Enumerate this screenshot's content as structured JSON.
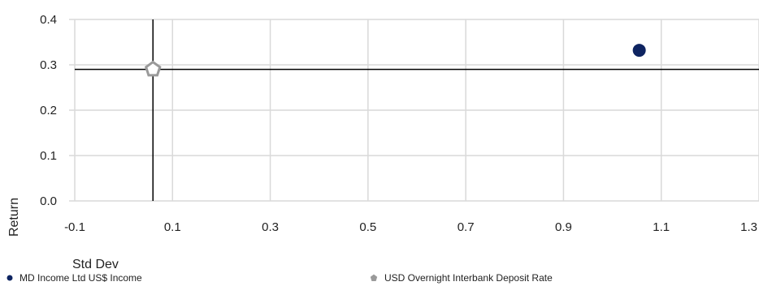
{
  "chart_data": {
    "type": "scatter",
    "title": "",
    "xlabel": "Std Dev",
    "ylabel": "Return",
    "xlim": [
      -0.1,
      1.3
    ],
    "ylim": [
      0.0,
      0.4
    ],
    "x_ticks": [
      "-0.1",
      "0.1",
      "0.3",
      "0.5",
      "0.7",
      "0.9",
      "1.1",
      "1.3"
    ],
    "y_ticks": [
      "0.0",
      "0.1",
      "0.2",
      "0.3",
      "0.4"
    ],
    "grid": true,
    "legend_position": "bottom",
    "series": [
      {
        "name": "MD Income Ltd US$ Income",
        "marker": "circle",
        "color": "#0e2461",
        "points": [
          {
            "x": 1.055,
            "y": 0.332
          }
        ]
      },
      {
        "name": "USD Overnight Interbank Deposit Rate",
        "marker": "pentagon",
        "color": "#9a9a9a",
        "points": [
          {
            "x": 0.06,
            "y": 0.29
          }
        ]
      }
    ],
    "crosshair": {
      "x": 0.06,
      "y": 0.29
    }
  }
}
